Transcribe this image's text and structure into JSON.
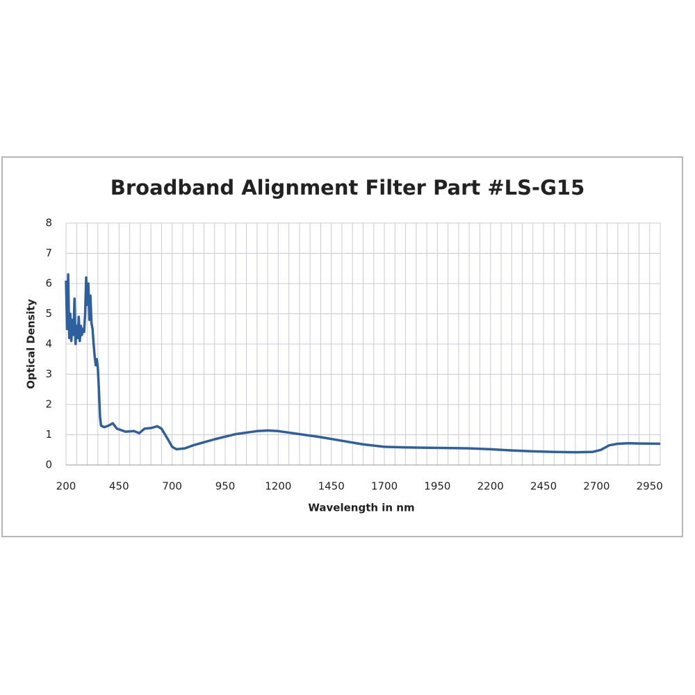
{
  "chart_data": {
    "type": "line",
    "title": "Broadband Alignment Filter Part #LS-G15",
    "xlabel": "Wavelength in nm",
    "ylabel": "Optical Density",
    "xlim": [
      200,
      3000
    ],
    "ylim": [
      0,
      8
    ],
    "xticks": [
      200,
      450,
      700,
      950,
      1200,
      1450,
      1700,
      1950,
      2200,
      2450,
      2700,
      2950
    ],
    "xminorticks": [
      250,
      300,
      350,
      400,
      500,
      550,
      600,
      650,
      750,
      800,
      850,
      900,
      1000,
      1050,
      1100,
      1150,
      1250,
      1300,
      1350,
      1400,
      1500,
      1550,
      1600,
      1650,
      1750,
      1800,
      1850,
      1900,
      2000,
      2050,
      2100,
      2150,
      2250,
      2300,
      2350,
      2400,
      2500,
      2550,
      2600,
      2650,
      2750,
      2800,
      2850,
      2900,
      3000
    ],
    "yticks": [
      0,
      1,
      2,
      3,
      4,
      5,
      6,
      7,
      8
    ],
    "grid": true,
    "series": [
      {
        "color": "#2e5f9e",
        "x": [
          200,
          205,
          210,
          215,
          220,
          225,
          230,
          235,
          240,
          245,
          250,
          255,
          260,
          265,
          270,
          275,
          280,
          285,
          290,
          295,
          300,
          305,
          310,
          315,
          320,
          325,
          330,
          335,
          340,
          345,
          350,
          355,
          360,
          365,
          380,
          400,
          420,
          440,
          480,
          520,
          545,
          570,
          600,
          630,
          650,
          680,
          700,
          720,
          760,
          800,
          900,
          1000,
          1100,
          1150,
          1200,
          1300,
          1400,
          1500,
          1600,
          1700,
          1800,
          1900,
          2000,
          2100,
          2200,
          2300,
          2400,
          2500,
          2600,
          2680,
          2720,
          2760,
          2800,
          2850,
          2900,
          3000
        ],
        "values": [
          6.1,
          4.5,
          6.3,
          4.2,
          5.0,
          4.1,
          4.8,
          4.3,
          5.5,
          4.0,
          4.6,
          4.2,
          4.9,
          4.1,
          4.6,
          4.3,
          4.5,
          4.4,
          5.0,
          6.2,
          5.3,
          6.0,
          4.8,
          5.6,
          4.7,
          4.5,
          4.0,
          3.6,
          3.3,
          3.5,
          3.2,
          2.5,
          1.6,
          1.3,
          1.25,
          1.3,
          1.38,
          1.2,
          1.1,
          1.12,
          1.05,
          1.2,
          1.22,
          1.28,
          1.2,
          0.85,
          0.6,
          0.52,
          0.55,
          0.65,
          0.85,
          1.02,
          1.12,
          1.14,
          1.12,
          1.02,
          0.92,
          0.8,
          0.68,
          0.6,
          0.58,
          0.57,
          0.56,
          0.55,
          0.52,
          0.48,
          0.45,
          0.43,
          0.42,
          0.43,
          0.5,
          0.65,
          0.7,
          0.72,
          0.71,
          0.7
        ]
      }
    ]
  }
}
